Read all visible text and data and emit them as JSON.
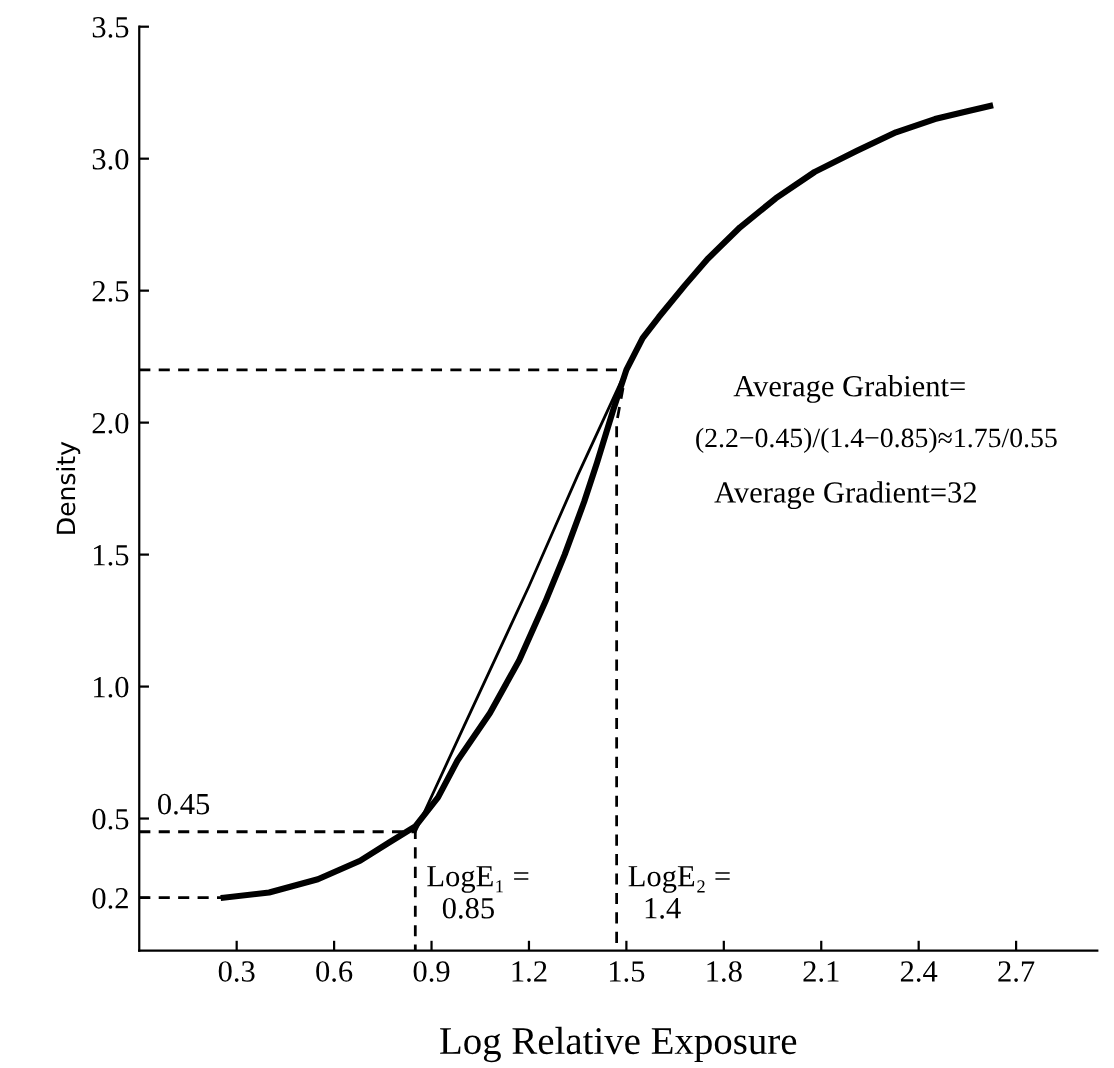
{
  "chart_data": {
    "type": "line",
    "xlabel": "Log Relative Exposure",
    "ylabel": "Density",
    "xlim": [
      0,
      2.95
    ],
    "ylim": [
      0,
      3.5
    ],
    "xticks": [
      0.3,
      0.6,
      0.9,
      1.2,
      1.5,
      1.8,
      2.1,
      2.4,
      2.7
    ],
    "yticks": [
      0.2,
      0.5,
      {
        "value": 1,
        "label": "1.0"
      },
      1.5,
      {
        "value": 2,
        "label": "2.0"
      },
      2.5,
      {
        "value": 3,
        "label": "3.0"
      },
      3.5
    ],
    "grid": false,
    "legend": false,
    "marker": "none",
    "series": [
      {
        "color": "#000000",
        "line_style": "solid",
        "x": [
          0.26,
          0.4,
          0.55,
          0.68,
          0.77,
          0.85,
          0.92,
          0.98,
          1.08,
          1.17,
          1.25,
          1.31,
          1.37,
          1.41,
          1.46,
          1.5,
          1.55,
          1.6,
          1.68,
          1.75,
          1.85,
          1.96,
          2.08,
          2.21,
          2.33,
          2.45,
          2.55,
          2.62
        ],
        "values": [
          0.2,
          0.22,
          0.27,
          0.34,
          0.41,
          0.47,
          0.58,
          0.72,
          0.9,
          1.1,
          1.32,
          1.5,
          1.7,
          1.85,
          2.05,
          2.2,
          2.32,
          2.4,
          2.52,
          2.62,
          2.74,
          2.85,
          2.95,
          3.03,
          3.1,
          3.15,
          3.18,
          3.2
        ]
      },
      {
        "color": "#000000",
        "line_style": "solid",
        "x": [
          0.85,
          1.0,
          1.2,
          1.35,
          1.5
        ],
        "values": [
          0.45,
          0.85,
          1.38,
          1.8,
          2.2
        ]
      },
      {
        "color": "#000000",
        "line_style": "dashed",
        "x": [
          0,
          0.26
        ],
        "values": [
          0.2,
          0.2
        ]
      },
      {
        "color": "#000000",
        "line_style": "dashed",
        "x": [
          0,
          0.85,
          0.85
        ],
        "values": [
          0.45,
          0.45,
          0
        ]
      },
      {
        "color": "#000000",
        "line_style": "dashed",
        "x": [
          0,
          1.5,
          1.47,
          1.47
        ],
        "values": [
          2.2,
          2.2,
          2.0,
          0
        ]
      }
    ],
    "annotations": [
      {
        "text": "0.45",
        "x": 0.02,
        "y": 0.45
      },
      {
        "text": "LogE₁ =\n  0.85",
        "x": 0.85,
        "y": 0.45
      },
      {
        "text": "LogE₂ =\n  1.4",
        "x": 1.47,
        "y": 0.45
      },
      "Average Grabient=",
      "(2.2−0.45)/(1.4−0.85)≈1.75/0.55",
      "Average Gradient=32"
    ]
  }
}
